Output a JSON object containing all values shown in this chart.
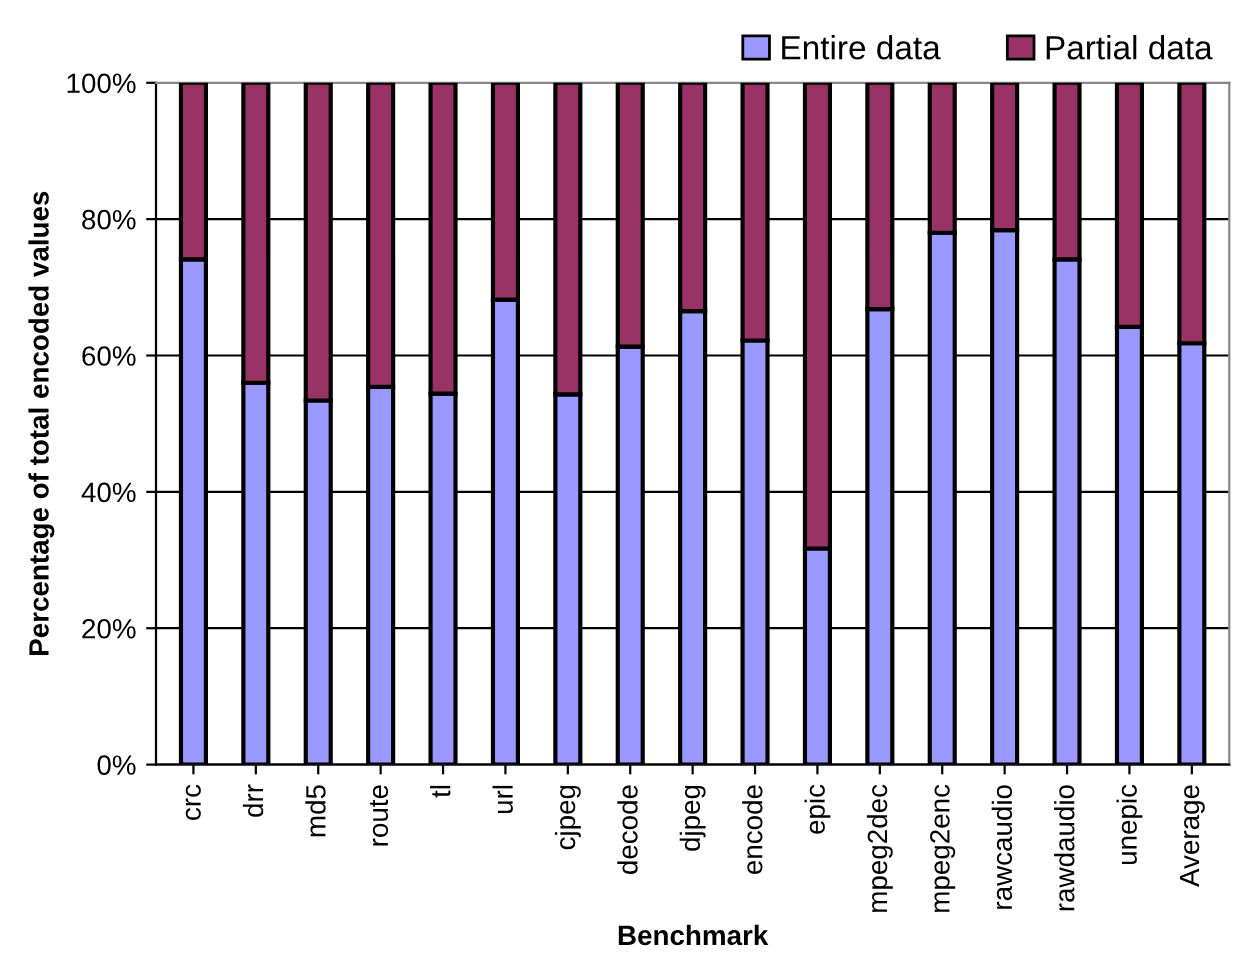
{
  "chart_data": {
    "type": "bar",
    "stacked": true,
    "xlabel": "Benchmark",
    "ylabel": "Percentage of total encoded values",
    "categories": [
      "crc",
      "drr",
      "md5",
      "route",
      "tl",
      "url",
      "cjpeg",
      "decode",
      "djpeg",
      "encode",
      "epic",
      "mpeg2dec",
      "mpeg2enc",
      "rawcaudio",
      "rawdaudio",
      "unepic",
      "Average"
    ],
    "series": [
      {
        "name": "Entire data",
        "color": "#9999ff",
        "values": [
          74.1,
          56.0,
          53.4,
          55.4,
          54.4,
          68.2,
          54.3,
          61.3,
          66.5,
          62.2,
          31.7,
          66.8,
          78.0,
          78.4,
          74.1,
          64.2,
          61.8
        ]
      },
      {
        "name": "Partial data",
        "color": "#993366",
        "values": [
          25.9,
          44.0,
          46.6,
          44.6,
          45.6,
          31.8,
          45.7,
          38.7,
          33.5,
          37.8,
          68.3,
          33.2,
          22.0,
          21.6,
          25.9,
          35.8,
          38.2
        ]
      }
    ],
    "ylim": [
      0,
      100
    ],
    "yticks": [
      {
        "value": 0,
        "label": "0%"
      },
      {
        "value": 20,
        "label": "20%"
      },
      {
        "value": 40,
        "label": "40%"
      },
      {
        "value": 60,
        "label": "60%"
      },
      {
        "value": 80,
        "label": "80%"
      },
      {
        "value": 100,
        "label": "100%"
      }
    ],
    "grid": "y",
    "legend": "top right"
  }
}
